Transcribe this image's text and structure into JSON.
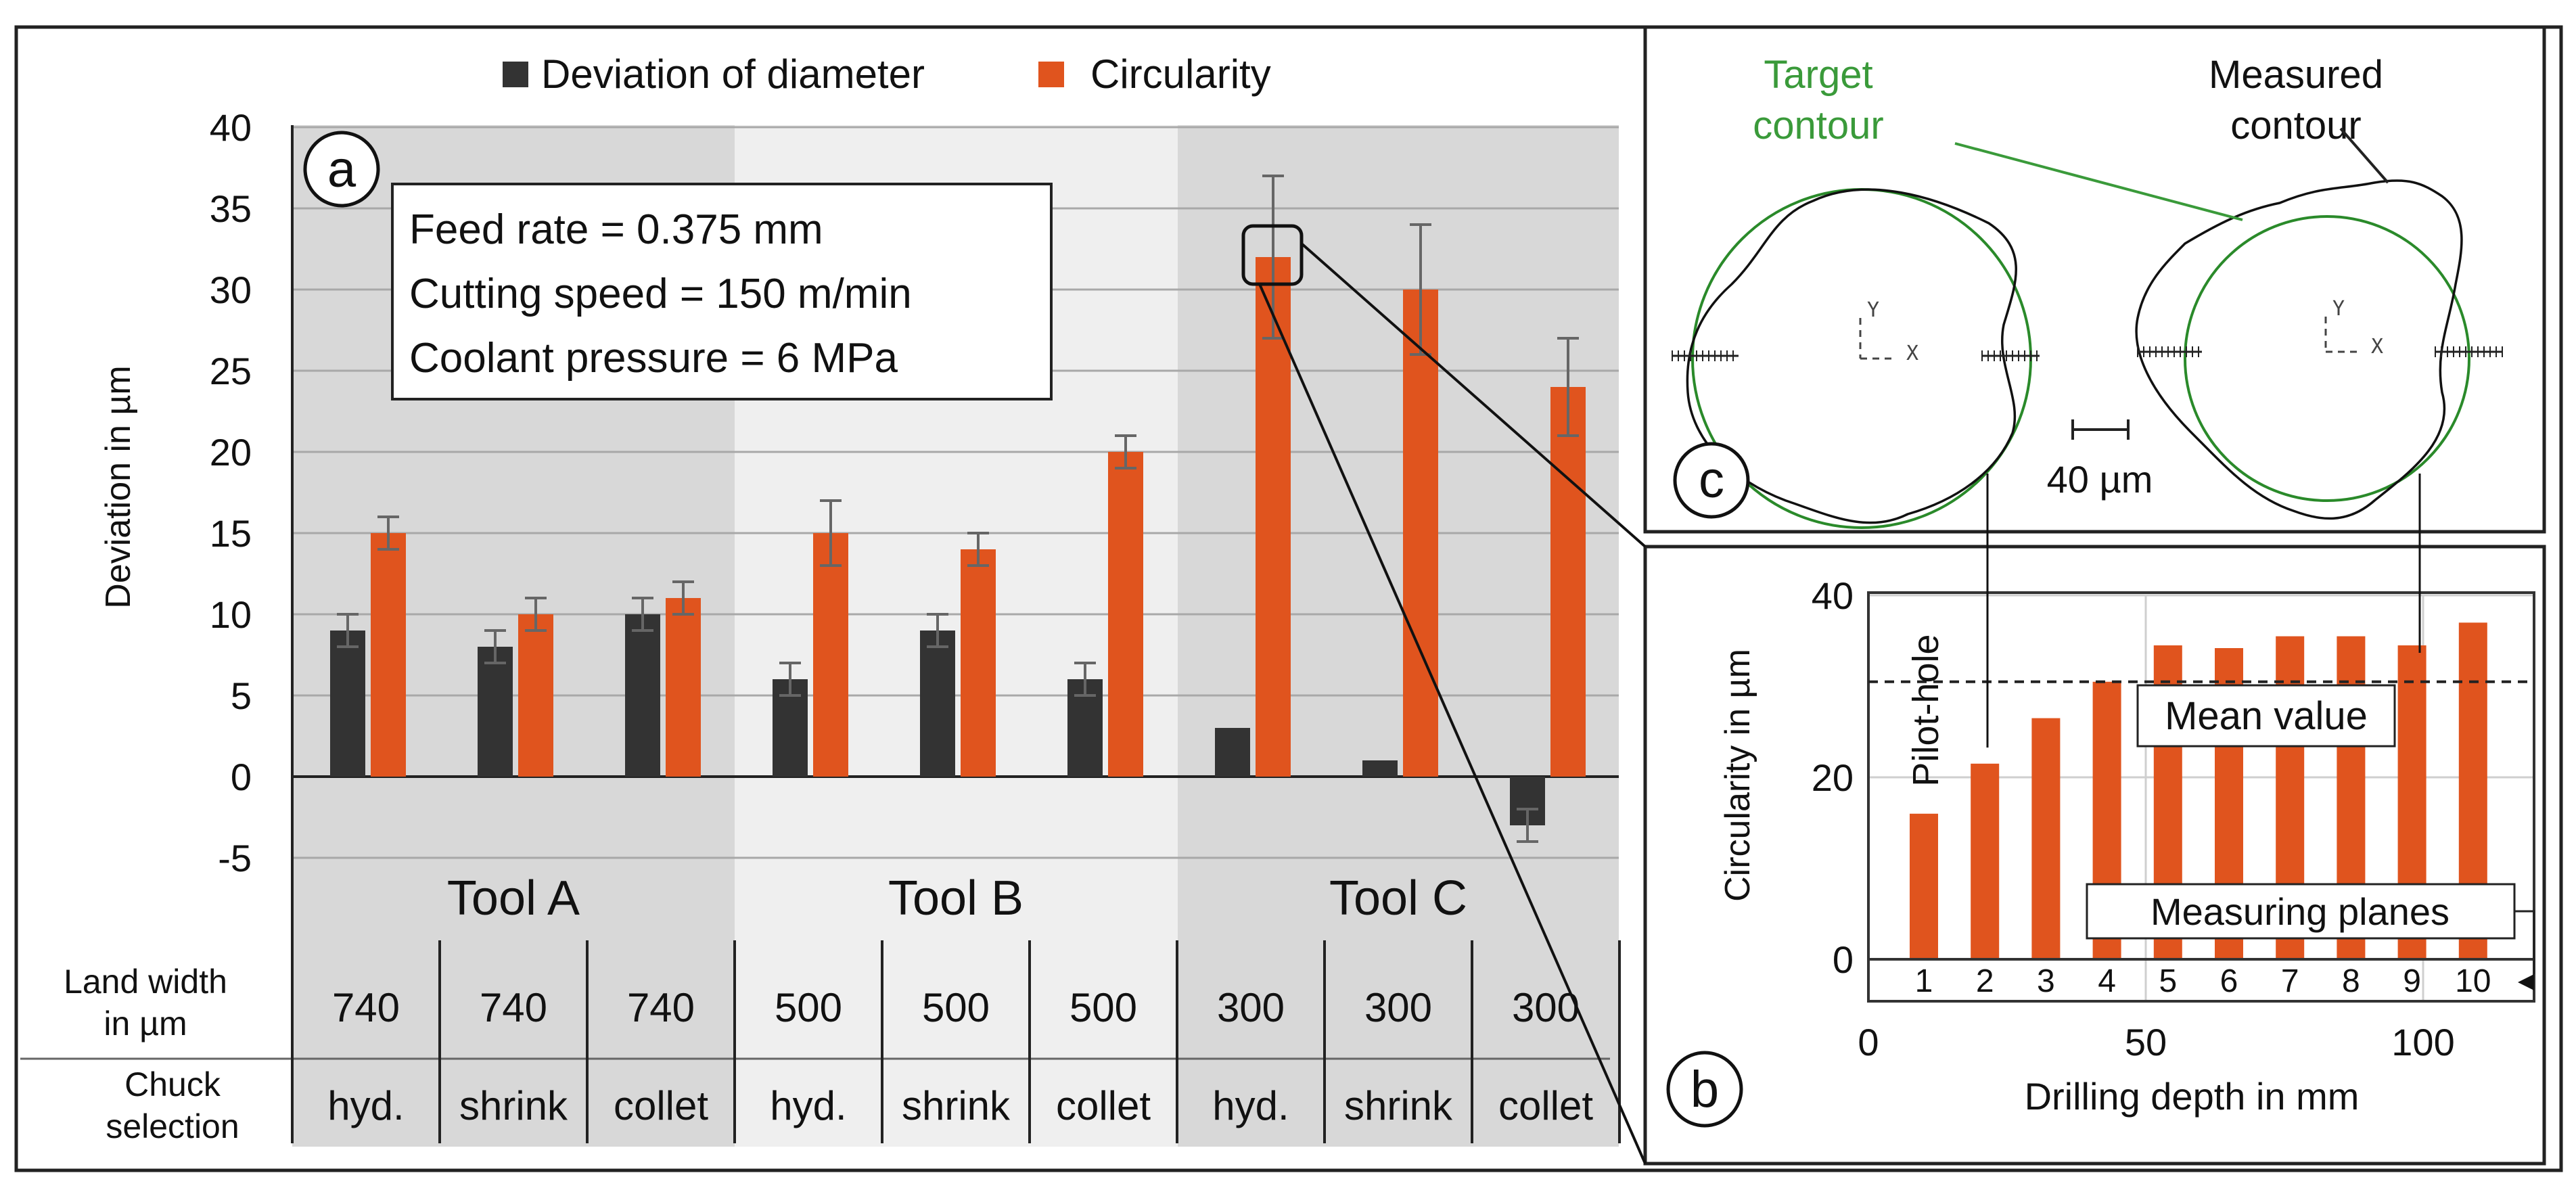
{
  "chart_data": [
    {
      "id": "a",
      "type": "bar",
      "panel_label": "a",
      "title": "",
      "legend": [
        {
          "name": "Deviation of diameter",
          "color": "#333333"
        },
        {
          "name": "Circularity",
          "color": "#e0541e"
        }
      ],
      "ylabel": "Deviation in µm",
      "ylim": [
        -5,
        40
      ],
      "yticks": [
        "-5",
        "0",
        "5",
        "10",
        "15",
        "20",
        "25",
        "30",
        "35",
        "40"
      ],
      "grid": true,
      "annotation_lines": [
        "Feed rate = 0.375 mm",
        "Cutting speed = 150 m/min",
        "Coolant pressure = 6 MPa"
      ],
      "groups": [
        "Tool A",
        "Tool B",
        "Tool C"
      ],
      "table": {
        "row1_label": [
          "Land width",
          "in µm"
        ],
        "row2_label": [
          "Chuck",
          "selection"
        ],
        "land_width": [
          "740",
          "740",
          "740",
          "500",
          "500",
          "500",
          "300",
          "300",
          "300"
        ],
        "chuck": [
          "hyd.",
          "shrink",
          "collet",
          "hyd.",
          "shrink",
          "collet",
          "hyd.",
          "shrink",
          "collet"
        ]
      },
      "series": [
        {
          "name": "Deviation of diameter",
          "values": [
            9,
            8,
            10,
            6,
            9,
            6,
            3,
            1,
            -3
          ],
          "err": [
            1,
            1,
            1,
            1,
            1,
            1,
            0,
            0,
            1
          ]
        },
        {
          "name": "Circularity",
          "values": [
            15,
            10,
            11,
            15,
            14,
            20,
            32,
            30,
            24
          ],
          "err": [
            1,
            1,
            1,
            2,
            1,
            1,
            5,
            4,
            3
          ]
        }
      ]
    },
    {
      "id": "b",
      "type": "bar",
      "panel_label": "b",
      "xlabel": "Drilling depth in mm",
      "ylabel": "Circularity in µm",
      "xlim": [
        0,
        120
      ],
      "ylim": [
        0,
        40
      ],
      "xticks": [
        "0",
        "50",
        "100"
      ],
      "yticks": [
        "0",
        "20",
        "40"
      ],
      "grid": true,
      "x": [
        10,
        21,
        32,
        43,
        54,
        65,
        76,
        87,
        98,
        109
      ],
      "values": [
        16,
        21.5,
        26.5,
        30.5,
        34.5,
        34.2,
        35.5,
        35.5,
        34.5,
        37
      ],
      "color": "#e0541e",
      "mean_value": 30.5,
      "mean_label": "Mean value",
      "pilot_label": "Pilot-hole",
      "planes_label": "Measuring planes",
      "planes": [
        "1",
        "2",
        "3",
        "4",
        "5",
        "6",
        "7",
        "8",
        "9",
        "10"
      ]
    }
  ],
  "contours": {
    "panel_label": "c",
    "target_label": [
      "Target",
      "contour"
    ],
    "measured_label": [
      "Measured",
      "contour"
    ],
    "scale_label": "40 µm",
    "axis_y": "Y",
    "axis_x": "X",
    "target_color": "#2a8a2a",
    "target_label_color": "#3a9a3a"
  }
}
